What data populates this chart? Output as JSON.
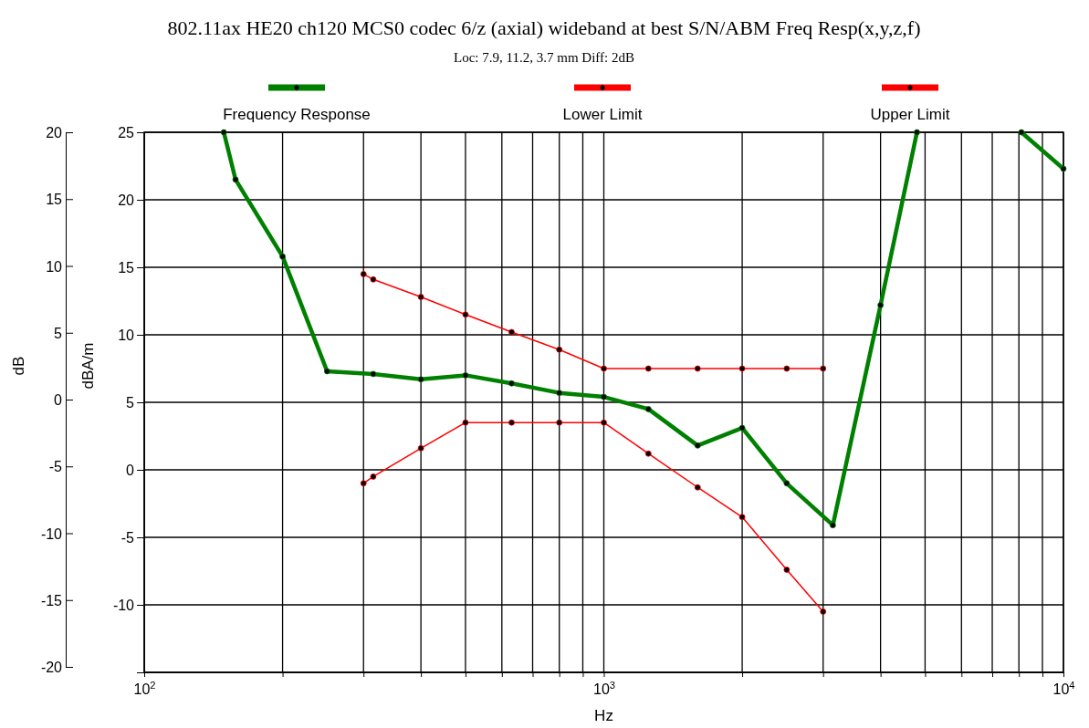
{
  "chart_data": {
    "type": "line",
    "title": "802.11ax HE20 ch120 MCS0 codec 6/z (axial) wideband at best S/N/ABM Freq Resp(x,y,z,f)",
    "subtitle": "Loc: 7.9, 11.2, 3.7 mm Diff: 2dB",
    "xlabel": "Hz",
    "ylabel": "dBA/m",
    "y2label": "dB",
    "log": "x",
    "grid": true,
    "legend": "top",
    "marker": "circle",
    "line_style": "solid",
    "xlim": [
      100,
      10000
    ],
    "xticks": [
      {
        "value": 100,
        "label": "10$^{2}$"
      },
      {
        "value": 200,
        "label": null
      },
      {
        "value": 300,
        "label": null
      },
      {
        "value": 400,
        "label": null
      },
      {
        "value": 500,
        "label": null
      },
      {
        "value": 600,
        "label": null
      },
      {
        "value": 700,
        "label": null
      },
      {
        "value": 800,
        "label": null
      },
      {
        "value": 900,
        "label": null
      },
      {
        "value": 1000,
        "label": "10$^{3}$"
      },
      {
        "value": 2000,
        "label": null
      },
      {
        "value": 3000,
        "label": null
      },
      {
        "value": 4000,
        "label": null
      },
      {
        "value": 5000,
        "label": null
      },
      {
        "value": 6000,
        "label": null
      },
      {
        "value": 7000,
        "label": null
      },
      {
        "value": 8000,
        "label": null
      },
      {
        "value": 9000,
        "label": null
      },
      {
        "value": 10000,
        "label": "10$^{4}$"
      }
    ],
    "ylim": [
      -15,
      25
    ],
    "yticks": [
      25,
      20,
      15,
      10,
      5,
      0,
      -5,
      -10,
      {
        "value": -15,
        "label": null
      }
    ],
    "y2lim": [
      -20,
      20
    ],
    "y2ticks": [
      20,
      15,
      10,
      5,
      0,
      -5,
      -10,
      -15,
      -20
    ],
    "series": [
      {
        "name": "Frequency Response",
        "color": "#008000",
        "x": [
          149,
          158,
          200,
          250,
          315,
          400,
          500,
          630,
          800,
          1000,
          1250,
          1600,
          2000,
          2500,
          3150,
          4000,
          4800,
          6000,
          8100,
          10000
        ],
        "values": [
          25,
          21.5,
          15.8,
          7.3,
          7.1,
          6.7,
          7.0,
          6.4,
          5.7,
          5.4,
          4.5,
          1.8,
          3.1,
          -1.0,
          -4.1,
          12.2,
          25,
          null,
          25,
          22.3
        ]
      },
      {
        "name": "Lower Limit",
        "color": "#ff0000",
        "x": [
          300,
          315,
          400,
          500,
          630,
          800,
          1000,
          1250,
          1600,
          2000,
          2500,
          3000
        ],
        "values": [
          -1.0,
          -0.5,
          1.6,
          3.5,
          3.5,
          3.5,
          3.5,
          1.2,
          -1.3,
          -3.5,
          -7.4,
          -10.5
        ]
      },
      {
        "name": "Upper Limit",
        "color": "#ff0000",
        "x": [
          300,
          315,
          400,
          500,
          630,
          800,
          1000,
          1250,
          1600,
          2000,
          2500,
          3000
        ],
        "values": [
          14.5,
          14.1,
          12.8,
          11.5,
          10.2,
          8.9,
          7.5,
          7.5,
          7.5,
          7.5,
          7.5,
          7.5
        ]
      }
    ]
  }
}
